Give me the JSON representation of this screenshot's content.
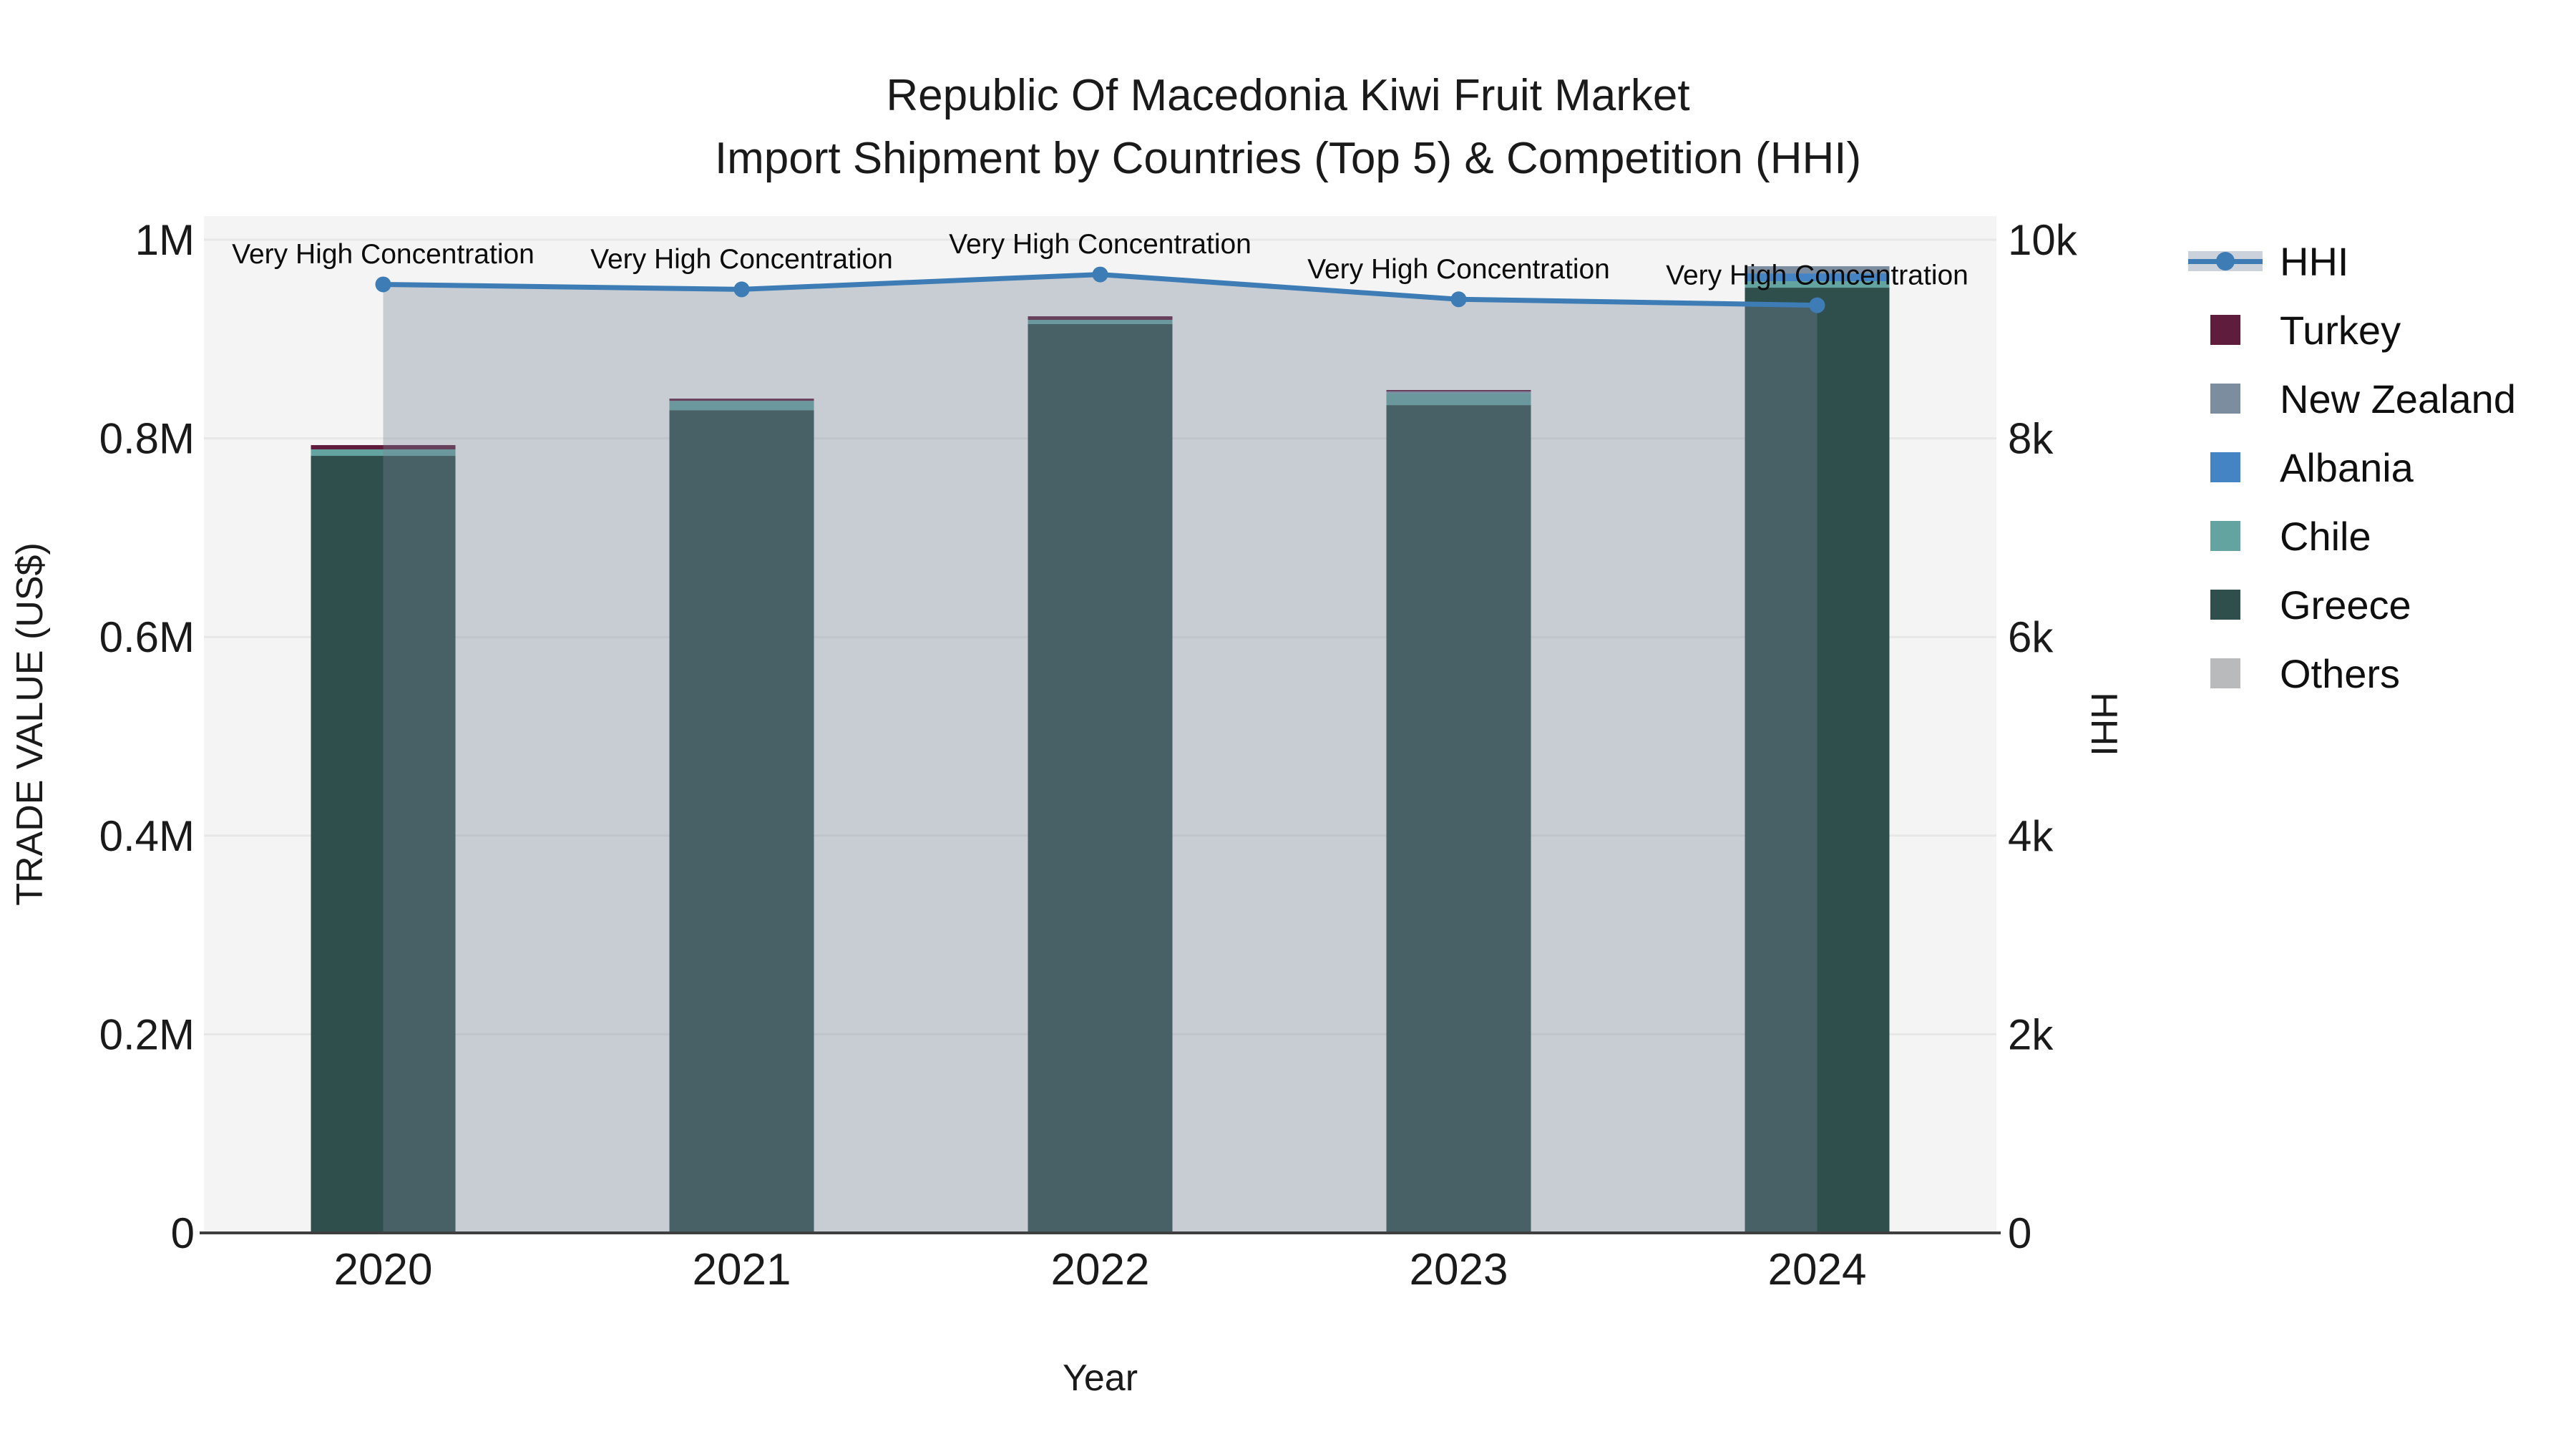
{
  "title": {
    "line1": "Republic Of Macedonia Kiwi Fruit Market",
    "line2": "Import Shipment by Countries (Top 5) & Competition (HHI)"
  },
  "axes": {
    "x": {
      "title": "Year",
      "tick_labels": [
        "2020",
        "2021",
        "2022",
        "2023",
        "2024"
      ]
    },
    "y_left": {
      "title": "TRADE VALUE (US$)",
      "ticks": [
        {
          "label": "0",
          "value": 0
        },
        {
          "label": "0.2M",
          "value": 200000
        },
        {
          "label": "0.4M",
          "value": 400000
        },
        {
          "label": "0.6M",
          "value": 600000
        },
        {
          "label": "0.8M",
          "value": 800000
        },
        {
          "label": "1M",
          "value": 1000000
        }
      ]
    },
    "y_right": {
      "title": "HHI",
      "ticks": [
        {
          "label": "0",
          "value": 0
        },
        {
          "label": "2k",
          "value": 2000
        },
        {
          "label": "4k",
          "value": 4000
        },
        {
          "label": "6k",
          "value": 6000
        },
        {
          "label": "8k",
          "value": 8000
        },
        {
          "label": "10k",
          "value": 10000
        }
      ]
    }
  },
  "legend": {
    "items": [
      {
        "label": "HHI",
        "color": "#3d7cb5",
        "type": "line"
      },
      {
        "label": "Turkey",
        "color": "#5f1c3d",
        "type": "bar"
      },
      {
        "label": "New Zealand",
        "color": "#7c8da0",
        "type": "bar"
      },
      {
        "label": "Albania",
        "color": "#4584c4",
        "type": "bar"
      },
      {
        "label": "Chile",
        "color": "#63a3a0",
        "type": "bar"
      },
      {
        "label": "Greece",
        "color": "#2f4f4d",
        "type": "bar"
      },
      {
        "label": "Others",
        "color": "#b8babc",
        "type": "bar"
      }
    ]
  },
  "annotations": [
    {
      "year": "2020",
      "text": "Very High Concentration"
    },
    {
      "year": "2021",
      "text": "Very High Concentration"
    },
    {
      "year": "2022",
      "text": "Very High Concentration"
    },
    {
      "year": "2023",
      "text": "Very High Concentration"
    },
    {
      "year": "2024",
      "text": "Very High Concentration"
    }
  ],
  "chart_data": {
    "type": "bar",
    "subtype": "stacked-bars-with-line",
    "categories": [
      "2020",
      "2021",
      "2022",
      "2023",
      "2024"
    ],
    "series": [
      {
        "name": "Turkey",
        "type": "bar",
        "color": "#5f1c3d",
        "values": [
          4300,
          2200,
          3600,
          1500,
          0
        ]
      },
      {
        "name": "New Zealand",
        "type": "bar",
        "color": "#7c8da0",
        "values": [
          0,
          0,
          0,
          1500,
          7200
        ]
      },
      {
        "name": "Albania",
        "type": "bar",
        "color": "#4584c4",
        "values": [
          0,
          0,
          0,
          0,
          7900
        ]
      },
      {
        "name": "Chile",
        "type": "bar",
        "color": "#63a3a0",
        "values": [
          6500,
          9400,
          4300,
          12200,
          6500
        ]
      },
      {
        "name": "Greece",
        "type": "bar",
        "color": "#2f4f4d",
        "values": [
          782400,
          828400,
          915000,
          833500,
          951700
        ]
      },
      {
        "name": "Others",
        "type": "bar",
        "color": "#b8babc",
        "values": [
          0,
          0,
          0,
          0,
          0
        ]
      },
      {
        "name": "HHI",
        "type": "line-area",
        "color": "#3d7cb5",
        "area_color": "rgba(119,131,152,0.35)",
        "yaxis": "right",
        "values": [
          9550,
          9500,
          9650,
          9400,
          9340
        ]
      }
    ],
    "stack_order_bottom_to_top": [
      "Others",
      "Greece",
      "Chile",
      "Albania",
      "New Zealand",
      "Turkey"
    ],
    "bar_totals": [
      793200,
      840000,
      922900,
      848700,
      973300
    ],
    "xlabel": "Year",
    "ylabel_left": "TRADE VALUE (US$)",
    "ylabel_right": "HHI",
    "ylim_left": [
      0,
      1000000
    ],
    "ylim_right": [
      0,
      10000
    ],
    "grid": true,
    "legend_position": "right",
    "plot_bg": "#f3f4f3",
    "grid_color": "#e6e7e6",
    "axis_line_color": "#3f3f3f"
  }
}
